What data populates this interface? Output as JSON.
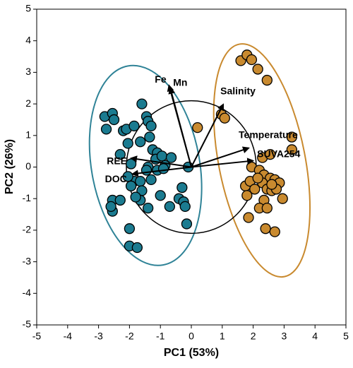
{
  "chart_data": {
    "type": "scatter",
    "xlabel": "PC1 (53%)",
    "ylabel": "PC2 (26%)",
    "xlim": [
      -5,
      5
    ],
    "ylim": [
      -5,
      5
    ],
    "xticks": [
      -5,
      -4,
      -3,
      -2,
      -1,
      0,
      1,
      2,
      3,
      4,
      5
    ],
    "yticks": [
      -5,
      -4,
      -3,
      -2,
      -1,
      0,
      1,
      2,
      3,
      4,
      5
    ],
    "series": [
      {
        "color": "#1b7b90",
        "x": [
          -2.8,
          -2.75,
          -2.55,
          -2.5,
          -2.2,
          -2.1,
          -1.85,
          -2.05,
          -2.3,
          -1.95,
          -1.6,
          -1.45,
          -1.4,
          -1.3,
          -1.35,
          -1.65,
          -1.25,
          -1.1,
          -1.15,
          -0.95,
          -0.85,
          -1.4,
          -1.1,
          -0.9,
          -0.65,
          -1.3,
          -1.85,
          -2.05,
          -1.65,
          -2.55,
          -2.55,
          -2.3,
          -2.6,
          -1.6,
          -1.65,
          -1.8,
          -1.95,
          -1.4,
          -1.0,
          -0.7,
          -0.4,
          -0.25,
          -0.2,
          -0.3,
          -0.1,
          -2.0,
          -2.0,
          -1.75,
          -0.15,
          -1.45
        ],
        "y": [
          1.6,
          1.2,
          1.7,
          1.5,
          1.15,
          1.2,
          1.3,
          0.75,
          0.4,
          0.1,
          2.0,
          1.6,
          1.45,
          1.3,
          0.95,
          0.8,
          0.55,
          0.45,
          0.25,
          0.35,
          0.05,
          0.0,
          -0.1,
          -0.05,
          0.3,
          -0.4,
          -0.45,
          -0.3,
          -0.45,
          -1.05,
          -1.4,
          -1.05,
          -1.25,
          -0.75,
          -1.05,
          -0.95,
          -0.6,
          -1.3,
          -0.9,
          -1.25,
          -1.0,
          -1.1,
          -1.25,
          -0.65,
          0.0,
          -1.95,
          -2.5,
          -2.55,
          -1.8,
          -0.1
        ]
      },
      {
        "color": "#c98a2f",
        "x": [
          1.6,
          1.8,
          1.95,
          2.15,
          2.45,
          0.97,
          1.08,
          0.2,
          3.25,
          3.25,
          2.3,
          2.55,
          1.95,
          2.2,
          2.35,
          2.55,
          2.7,
          2.85,
          1.75,
          1.9,
          2.05,
          2.3,
          2.45,
          2.6,
          2.75,
          1.8,
          2.35,
          2.95,
          2.2,
          2.45,
          1.85,
          2.4,
          2.7,
          2.6,
          2.15
        ],
        "y": [
          3.37,
          3.55,
          3.4,
          3.1,
          2.75,
          1.67,
          1.55,
          1.25,
          0.95,
          0.55,
          0.3,
          0.4,
          0.0,
          -0.1,
          -0.25,
          -0.35,
          -0.4,
          -0.5,
          -0.6,
          -0.45,
          -0.7,
          -0.5,
          -0.7,
          -0.75,
          -0.7,
          -0.9,
          -1.05,
          -1.0,
          -1.3,
          -1.3,
          -1.6,
          -1.95,
          -2.05,
          -0.55,
          -0.35
        ]
      }
    ],
    "ellipses": [
      {
        "color": "#2f8397",
        "center": [
          -1.48,
          0.05
        ],
        "radii": [
          1.75,
          3.2
        ],
        "angle": -10
      },
      {
        "color": "#c98a2f",
        "center": [
          2.28,
          0.21
        ],
        "radii": [
          1.4,
          3.75
        ],
        "angle": -11
      }
    ],
    "circle": {
      "center": [
        0,
        0
      ],
      "radius": 2.1
    },
    "loadings": [
      {
        "label": "Fe",
        "x": -0.72,
        "y": 2.58
      },
      {
        "label": "Mn",
        "x": -0.68,
        "y": 2.5
      },
      {
        "label": "Salinity",
        "x": 1.03,
        "y": 1.98
      },
      {
        "label": "Temperature",
        "x": 1.85,
        "y": 0.6
      },
      {
        "label": "SUVA254",
        "x": 1.99,
        "y": 0.2
      },
      {
        "label": "REE",
        "x": -1.94,
        "y": 0.28
      },
      {
        "label": "DOC",
        "x": -1.9,
        "y": -0.22
      }
    ]
  }
}
